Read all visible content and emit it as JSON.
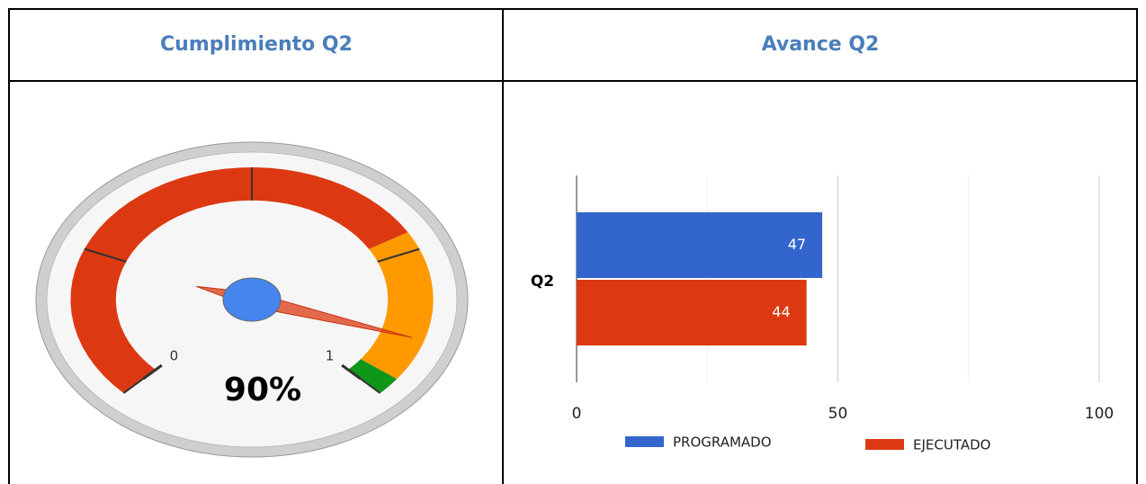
{
  "table": {
    "headers": [
      "Cumplimiento Q2",
      "Avance Q2"
    ]
  },
  "chart_data": [
    {
      "type": "gauge",
      "min": 0,
      "max": 1,
      "ticks": [
        0,
        1
      ],
      "values": [
        0.9
      ],
      "value_labels": [
        "90%"
      ],
      "bands": [
        {
          "from": 0,
          "to": 0.72,
          "color": "#dc3912"
        },
        {
          "from": 0.72,
          "to": 0.97,
          "color": "#ff9900"
        },
        {
          "from": 0.97,
          "to": 1,
          "color": "#109618"
        }
      ]
    },
    {
      "type": "bar",
      "orientation": "horizontal",
      "categories": [
        "Q2"
      ],
      "series": [
        {
          "name": "PROGRAMADO",
          "color": "#3366cc",
          "values": [
            47
          ]
        },
        {
          "name": "EJECUTADO",
          "color": "#dc3912",
          "values": [
            44
          ]
        }
      ],
      "xlim": [
        0,
        100
      ],
      "xticks": [
        0,
        50,
        100
      ],
      "minor_gridlines": [
        25,
        75
      ],
      "grid": true,
      "legend": "bottom"
    }
  ]
}
